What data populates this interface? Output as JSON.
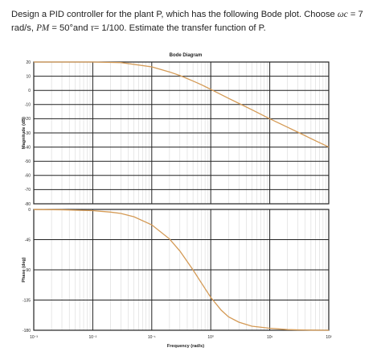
{
  "question": {
    "part1": "Design a PID controller for the plant P, which has the following Bode plot. Choose ",
    "omega_c": "ωc",
    "part2": " = 7 rad/s, ",
    "pm": "PM",
    "part3": " = 50°and ",
    "tau": "τ",
    "part4": "= 1/100. Estimate the transfer function of P."
  },
  "chart_data": {
    "type": "line",
    "title": "Bode Diagram",
    "xlabel": "Frequency (rad/s)",
    "x_scale": "log",
    "x_ticks": [
      0.001,
      0.01,
      0.1,
      1,
      10,
      100
    ],
    "x_tick_labels": [
      "10⁻³",
      "10⁻²",
      "10⁻¹",
      "10⁰",
      "10¹",
      "10²"
    ],
    "xlim": [
      0.001,
      100
    ],
    "grid": true,
    "line_color": "#d49a55",
    "panels": [
      {
        "name": "magnitude",
        "ylabel": "Magnitude (dB)",
        "ylim": [
          -80,
          20
        ],
        "y_ticks": [
          20,
          10,
          0,
          -10,
          -20,
          -30,
          -40,
          -50,
          -60,
          -70,
          -80
        ],
        "series": [
          {
            "x": [
              0.001,
              0.003,
              0.01,
              0.03,
              0.1,
              0.2,
              0.3,
              0.5,
              0.7,
              1,
              1.5,
              2,
              3,
              5,
              10,
              20,
              30,
              50,
              100
            ],
            "y": [
              20,
              20,
              20,
              19.6,
              16.6,
              13,
              10.5,
              6.6,
              3.9,
              0.7,
              -3,
              -5.6,
              -9.2,
              -13.7,
              -20,
              -26,
              -29.5,
              -34,
              -40
            ]
          }
        ]
      },
      {
        "name": "phase",
        "ylabel": "Phase (deg)",
        "ylim": [
          -180,
          0
        ],
        "y_ticks": [
          0,
          -45,
          -90,
          -135,
          -180
        ],
        "series": [
          {
            "x": [
              0.001,
              0.003,
              0.01,
              0.02,
              0.03,
              0.05,
              0.1,
              0.2,
              0.3,
              0.5,
              0.7,
              1,
              1.5,
              2,
              3,
              5,
              10,
              20,
              30,
              50,
              100
            ],
            "y": [
              -0.1,
              -0.5,
              -1.8,
              -4,
              -6,
              -11,
              -23,
              -44,
              -62,
              -90,
              -110,
              -131,
              -150,
              -160,
              -168,
              -174,
              -177,
              -179,
              -179.5,
              -179.8,
              -180
            ]
          }
        ]
      }
    ]
  }
}
